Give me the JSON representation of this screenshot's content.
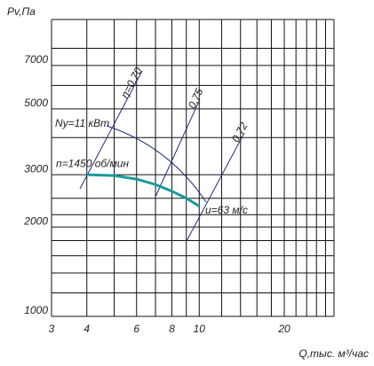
{
  "chart_data": {
    "type": "line",
    "y_label": "Pv,Па",
    "x_label": "Q,тыс. м³/час",
    "xlog": true,
    "ylog": true,
    "xlim": [
      3,
      30
    ],
    "ylim": [
      1000,
      10000
    ],
    "xticks": [
      3,
      4,
      6,
      8,
      10,
      20
    ],
    "yticks": [
      1000,
      2000,
      3000,
      5000,
      7000
    ],
    "xgrid": [
      3,
      4,
      5,
      6,
      7,
      8,
      9,
      10,
      12,
      14,
      16,
      18,
      20,
      22,
      24,
      26,
      28,
      30
    ],
    "ygrid": [
      1000,
      1200,
      1400,
      1600,
      1800,
      2000,
      2200,
      2500,
      3000,
      4000,
      5000,
      6000,
      7000,
      8000,
      10000
    ],
    "grid": true,
    "series": [
      {
        "name": "n=1450 об/мин",
        "color": "#1a9a9a",
        "x": [
          4,
          5,
          6,
          7,
          8,
          9,
          10
        ],
        "values": [
          3000,
          2980,
          2900,
          2780,
          2640,
          2500,
          2350
        ]
      }
    ],
    "annotations": {
      "power": "Ny=11 кВт",
      "speed": "u=63 м/с",
      "eff1": "η=0,70",
      "eff2": "0,75",
      "eff3": "0,72"
    }
  }
}
